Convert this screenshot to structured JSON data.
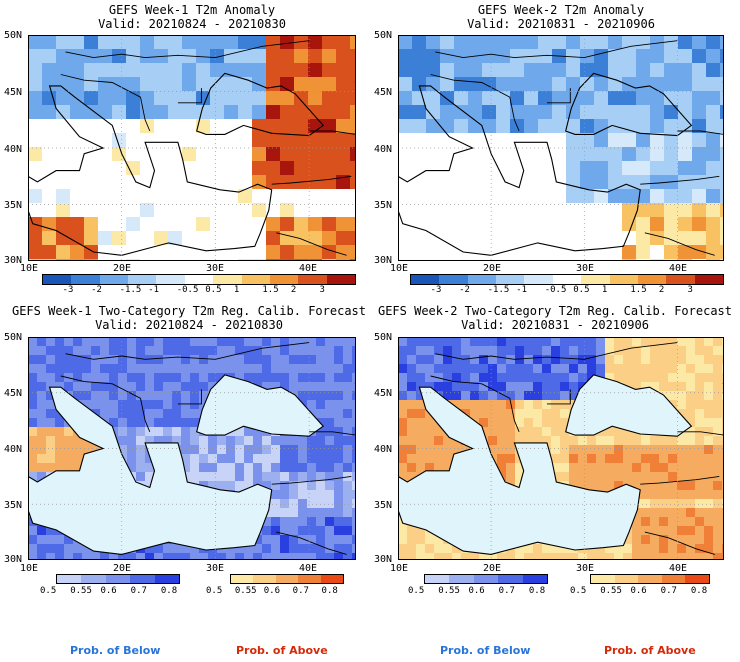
{
  "panels": [
    {
      "title": "GEFS Week-1 T2m Anomaly",
      "valid": "Valid: 20210824 - 20210830",
      "kind": "anomaly"
    },
    {
      "title": "GEFS Week-2 T2m Anomaly",
      "valid": "Valid: 20210831 - 20210906",
      "kind": "anomaly"
    },
    {
      "title": "GEFS Week-1 Two-Category T2m Reg. Calib. Forecast",
      "valid": "Valid: 20210824 - 20210830",
      "kind": "prob"
    },
    {
      "title": "GEFS Week-2 Two-Category T2m Reg. Calib. Forecast",
      "valid": "Valid: 20210831 - 20210906",
      "kind": "prob"
    }
  ],
  "axes": {
    "lat_labels": [
      "50N",
      "45N",
      "40N",
      "35N",
      "30N"
    ],
    "lon_labels": [
      "10E",
      "20E",
      "30E",
      "40E"
    ]
  },
  "anomaly_colorbar": {
    "labels": [
      "-3",
      "-2",
      "-1.5",
      "-1",
      "-0.5",
      "0.5",
      "1",
      "1.5",
      "2",
      "3"
    ],
    "colors": [
      "#1a56b8",
      "#3b7fd6",
      "#6fa9ec",
      "#a7cff5",
      "#d5e9fa",
      "#ffffff",
      "#fde9a6",
      "#f8c262",
      "#f09337",
      "#d9521d",
      "#a8150d"
    ]
  },
  "prob_colorbar": {
    "below_labels": [
      "0.5",
      "0.55",
      "0.6",
      "0.7",
      "0.8"
    ],
    "above_labels": [
      "0.5",
      "0.55",
      "0.6",
      "0.7",
      "0.8"
    ],
    "below_colors": [
      "#c7d3f7",
      "#9cb0f0",
      "#7a92ec",
      "#4f6ae6",
      "#2a3fe0"
    ],
    "above_colors": [
      "#fde9a6",
      "#fbcf86",
      "#f6ac60",
      "#f08038",
      "#ea4a18"
    ]
  },
  "legend": {
    "below": "Prob. of Below",
    "above": "Prob. of Above",
    "below_color": "#2a74d8",
    "above_color": "#d42a0a"
  }
}
